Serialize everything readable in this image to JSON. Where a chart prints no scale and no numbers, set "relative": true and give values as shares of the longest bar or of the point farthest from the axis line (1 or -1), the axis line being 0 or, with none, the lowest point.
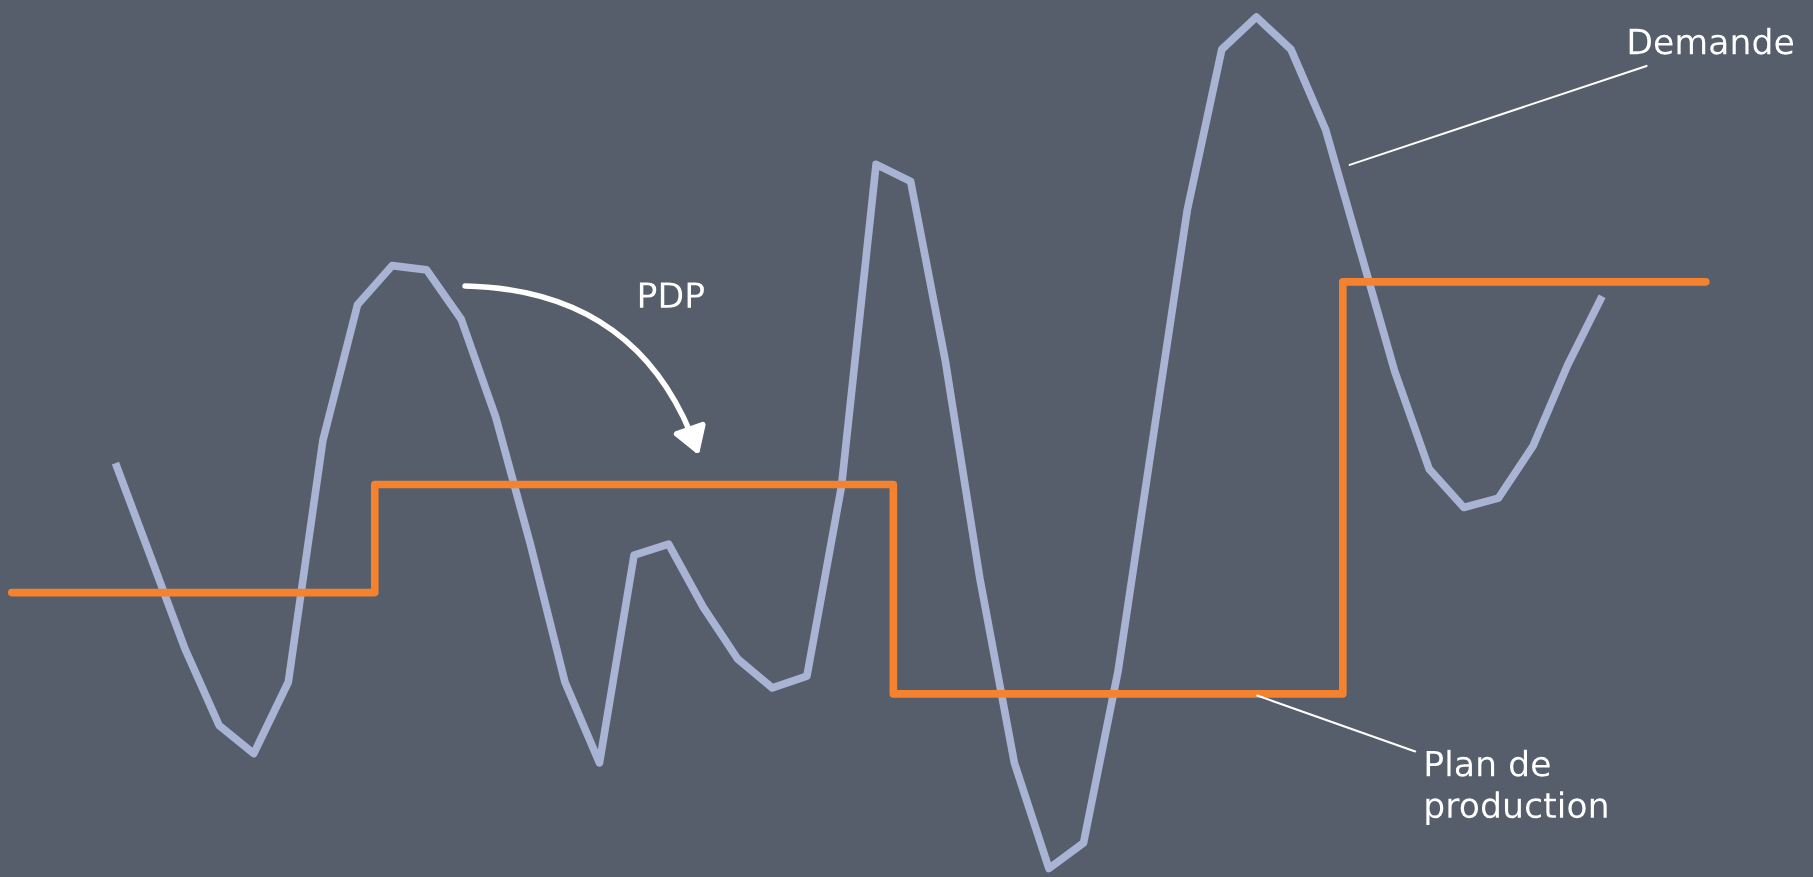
{
  "chart_data": {
    "type": "line",
    "relative": true,
    "grid": false,
    "categories": [
      null,
      null,
      null,
      null,
      null,
      null,
      null,
      null,
      null,
      null,
      null,
      null,
      null,
      null,
      null,
      null,
      null,
      null,
      null,
      null,
      null,
      null,
      null,
      null,
      null,
      null,
      null,
      null,
      null,
      null,
      null,
      null,
      null,
      null,
      null,
      null,
      null,
      null,
      null,
      null,
      null,
      null,
      null,
      null,
      null,
      null,
      null,
      null,
      null,
      null
    ],
    "series": [
      {
        "color": "#a9b4d4",
        "values": [
          null,
          null,
          null,
          0.476,
          0.368,
          0.259,
          0.168,
          0.135,
          0.219,
          0.503,
          0.662,
          0.708,
          0.703,
          0.645,
          0.53,
          0.381,
          0.219,
          0.124,
          0.368,
          0.381,
          0.307,
          0.246,
          0.212,
          0.226,
          0.449,
          0.827,
          0.807,
          0.597,
          0.341,
          0.124,
          0,
          0.03,
          0.232,
          0.503,
          0.773,
          0.962,
          1,
          0.962,
          0.868,
          0.726,
          0.584,
          0.469,
          0.424,
          0.435,
          0.496,
          0.591,
          0.672,
          null,
          null,
          null
        ]
      },
      {
        "type": "step",
        "color": "#f5822f",
        "values": [
          0.324,
          0.324,
          0.324,
          0.324,
          0.324,
          0.324,
          0.324,
          0.324,
          0.324,
          0.324,
          0.324,
          0.451,
          0.451,
          0.451,
          0.451,
          0.451,
          0.451,
          0.451,
          0.451,
          0.451,
          0.451,
          0.451,
          0.451,
          0.451,
          0.451,
          0.451,
          0.205,
          0.205,
          0.205,
          0.205,
          0.205,
          0.205,
          0.205,
          0.205,
          0.205,
          0.205,
          0.205,
          0.205,
          0.205,
          0.689,
          0.689,
          0.689,
          0.689,
          0.689,
          0.689,
          0.689,
          0.689,
          0.689,
          0.689,
          0.689
        ]
      }
    ],
    "annotations": [
      "Demande",
      "Plan de\nproduction",
      "PDP"
    ]
  }
}
